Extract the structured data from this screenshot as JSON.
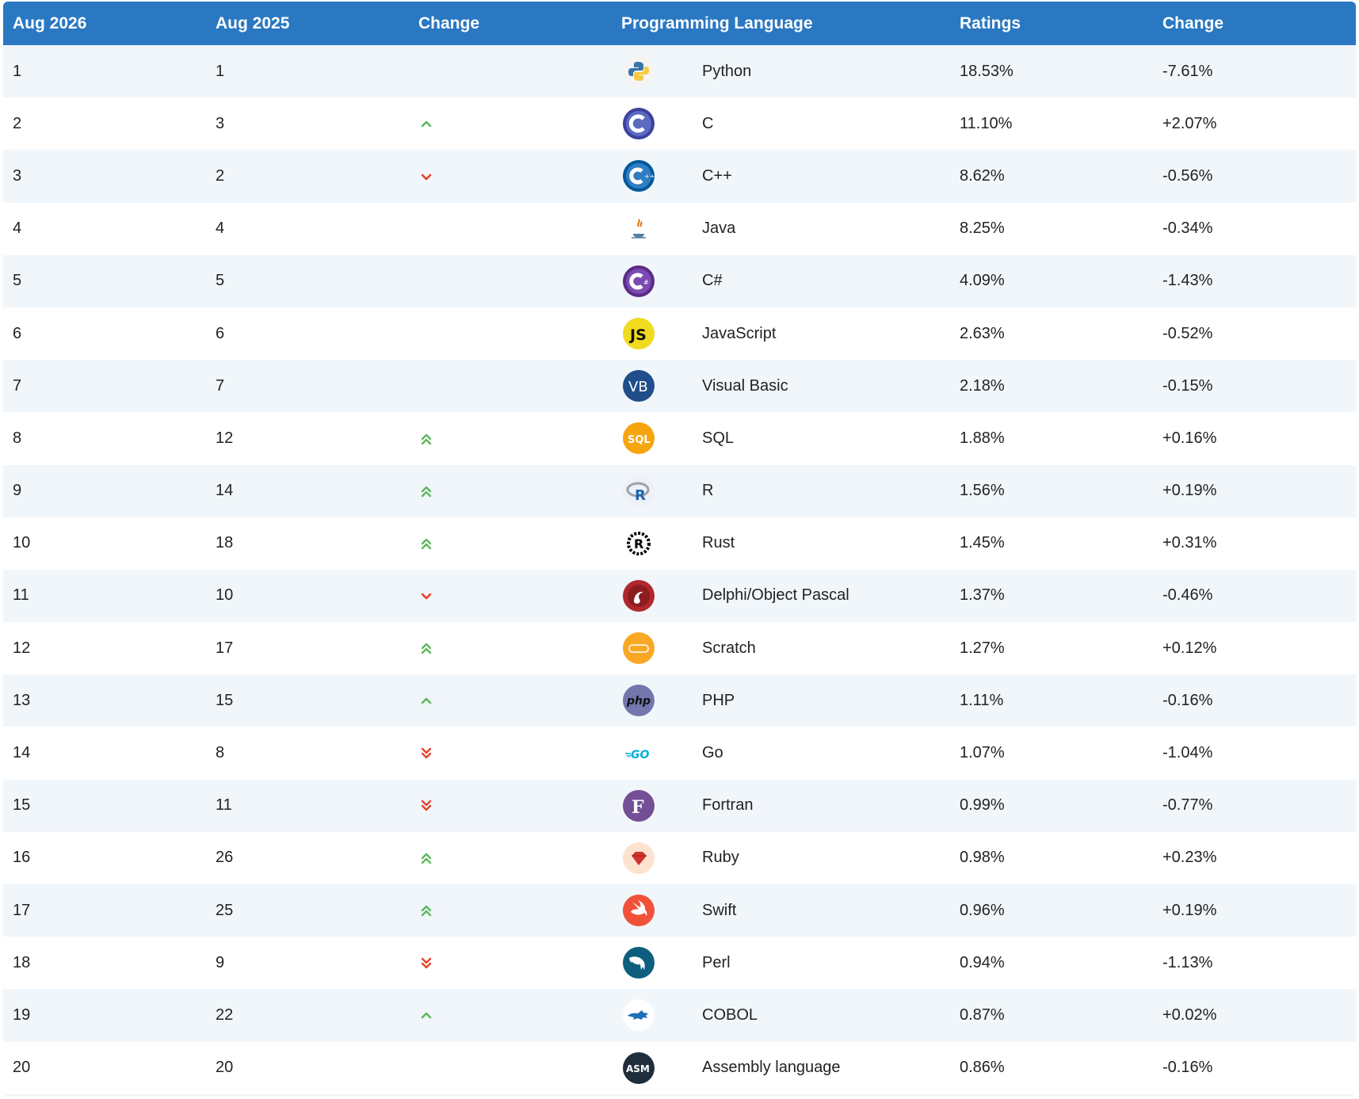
{
  "headers": {
    "current_month": "Aug 2026",
    "previous_month": "Aug 2025",
    "change": "Change",
    "language": "Programming Language",
    "ratings": "Ratings",
    "ratings_change": "Change"
  },
  "colors": {
    "header_bg": "#2a78c2",
    "up": "#5cb85c",
    "down": "#e8412c"
  },
  "rows": [
    {
      "rank": "1",
      "prev": "1",
      "trend": "none",
      "icon": "python-logo-icon",
      "lang": "Python",
      "rating": "18.53%",
      "delta": "-7.61%"
    },
    {
      "rank": "2",
      "prev": "3",
      "trend": "up",
      "icon": "c-logo-icon",
      "lang": "C",
      "rating": "11.10%",
      "delta": "+2.07%"
    },
    {
      "rank": "3",
      "prev": "2",
      "trend": "down",
      "icon": "cpp-logo-icon",
      "lang": "C++",
      "rating": "8.62%",
      "delta": "-0.56%"
    },
    {
      "rank": "4",
      "prev": "4",
      "trend": "none",
      "icon": "java-logo-icon",
      "lang": "Java",
      "rating": "8.25%",
      "delta": "-0.34%"
    },
    {
      "rank": "5",
      "prev": "5",
      "trend": "none",
      "icon": "csharp-logo-icon",
      "lang": "C#",
      "rating": "4.09%",
      "delta": "-1.43%"
    },
    {
      "rank": "6",
      "prev": "6",
      "trend": "none",
      "icon": "javascript-logo-icon",
      "lang": "JavaScript",
      "rating": "2.63%",
      "delta": "-0.52%"
    },
    {
      "rank": "7",
      "prev": "7",
      "trend": "none",
      "icon": "visual-basic-logo-icon",
      "lang": "Visual Basic",
      "rating": "2.18%",
      "delta": "-0.15%"
    },
    {
      "rank": "8",
      "prev": "12",
      "trend": "double-up",
      "icon": "sql-logo-icon",
      "lang": "SQL",
      "rating": "1.88%",
      "delta": "+0.16%"
    },
    {
      "rank": "9",
      "prev": "14",
      "trend": "double-up",
      "icon": "r-logo-icon",
      "lang": "R",
      "rating": "1.56%",
      "delta": "+0.19%"
    },
    {
      "rank": "10",
      "prev": "18",
      "trend": "double-up",
      "icon": "rust-logo-icon",
      "lang": "Rust",
      "rating": "1.45%",
      "delta": "+0.31%"
    },
    {
      "rank": "11",
      "prev": "10",
      "trend": "down",
      "icon": "delphi-logo-icon",
      "lang": "Delphi/Object Pascal",
      "rating": "1.37%",
      "delta": "-0.46%"
    },
    {
      "rank": "12",
      "prev": "17",
      "trend": "double-up",
      "icon": "scratch-logo-icon",
      "lang": "Scratch",
      "rating": "1.27%",
      "delta": "+0.12%"
    },
    {
      "rank": "13",
      "prev": "15",
      "trend": "up",
      "icon": "php-logo-icon",
      "lang": "PHP",
      "rating": "1.11%",
      "delta": "-0.16%"
    },
    {
      "rank": "14",
      "prev": "8",
      "trend": "double-down",
      "icon": "go-logo-icon",
      "lang": "Go",
      "rating": "1.07%",
      "delta": "-1.04%"
    },
    {
      "rank": "15",
      "prev": "11",
      "trend": "double-down",
      "icon": "fortran-logo-icon",
      "lang": "Fortran",
      "rating": "0.99%",
      "delta": "-0.77%"
    },
    {
      "rank": "16",
      "prev": "26",
      "trend": "double-up",
      "icon": "ruby-logo-icon",
      "lang": "Ruby",
      "rating": "0.98%",
      "delta": "+0.23%"
    },
    {
      "rank": "17",
      "prev": "25",
      "trend": "double-up",
      "icon": "swift-logo-icon",
      "lang": "Swift",
      "rating": "0.96%",
      "delta": "+0.19%"
    },
    {
      "rank": "18",
      "prev": "9",
      "trend": "double-down",
      "icon": "perl-logo-icon",
      "lang": "Perl",
      "rating": "0.94%",
      "delta": "-1.13%"
    },
    {
      "rank": "19",
      "prev": "22",
      "trend": "up",
      "icon": "cobol-logo-icon",
      "lang": "COBOL",
      "rating": "0.87%",
      "delta": "+0.02%"
    },
    {
      "rank": "20",
      "prev": "20",
      "trend": "none",
      "icon": "assembly-logo-icon",
      "lang": "Assembly language",
      "rating": "0.86%",
      "delta": "-0.16%"
    }
  ]
}
